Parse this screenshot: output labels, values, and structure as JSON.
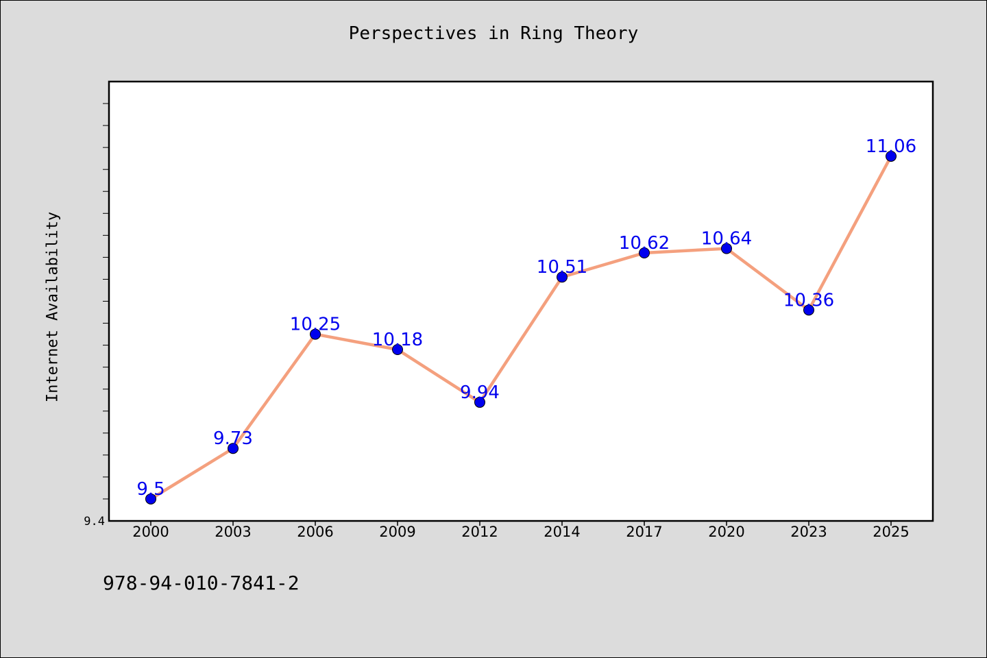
{
  "title": "Perspectives in Ring Theory",
  "isbn": "978-94-010-7841-2",
  "colors": {
    "background": "#dcdcdc",
    "plot_background": "#ffffff",
    "line": "#f4a07e",
    "marker": "#0000ee",
    "data_label": "#0000ee"
  },
  "chart_data": {
    "type": "line",
    "title": "Perspectives in Ring Theory",
    "xlabel": "",
    "ylabel": "Internet Availability",
    "categories": [
      "2000",
      "2003",
      "2006",
      "2009",
      "2012",
      "2014",
      "2017",
      "2020",
      "2023",
      "2025"
    ],
    "series": [
      {
        "values": [
          9.5,
          9.73,
          10.25,
          10.18,
          9.94,
          10.51,
          10.62,
          10.64,
          10.36,
          11.06
        ]
      }
    ],
    "data_labels": [
      "9.5",
      "9.73",
      "10.25",
      "10.18",
      "9.94",
      "10.51",
      "10.62",
      "10.64",
      "10.36",
      "11.06"
    ],
    "y_tick_label": "9.4",
    "ylim": [
      9.4,
      11.4
    ],
    "y_minor_tick_step": 0.1,
    "grid": false,
    "legend": "none"
  }
}
